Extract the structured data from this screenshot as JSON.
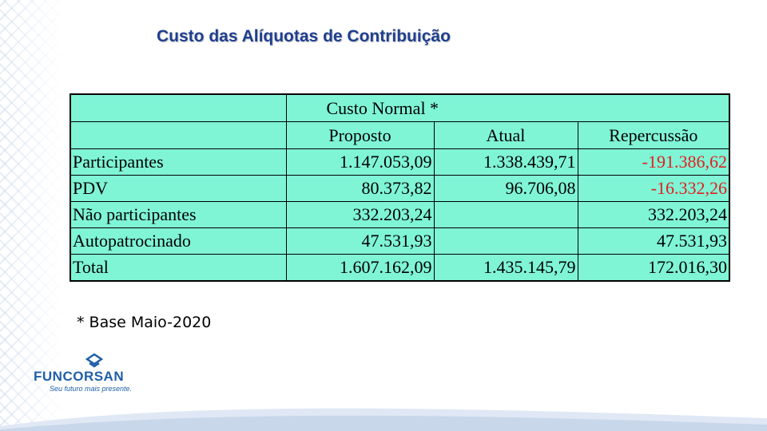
{
  "slide": {
    "title": "Custo das Alíquotas de Contribuição"
  },
  "table": {
    "group_header": "Custo Normal *",
    "columns": [
      "Proposto",
      "Atual",
      "Repercussão"
    ],
    "rows": [
      {
        "label": "Participantes",
        "proposto": "1.147.053,09",
        "atual": "1.338.439,71",
        "repercussao": "-191.386,62"
      },
      {
        "label": "PDV",
        "proposto": "80.373,82",
        "atual": "96.706,08",
        "repercussao": "-16.332,26"
      },
      {
        "label": "Não participantes",
        "proposto": "332.203,24",
        "atual": "",
        "repercussao": "332.203,24"
      },
      {
        "label": "Autopatrocinado",
        "proposto": "47.531,93",
        "atual": "",
        "repercussao": "47.531,93"
      },
      {
        "label": "Total",
        "proposto": "1.607.162,09",
        "atual": "1.435.145,79",
        "repercussao": "172.016,30"
      }
    ]
  },
  "footnote": "* Base Maio-2020",
  "logo": {
    "name": "FUNCORSAN",
    "tagline": "Seu futuro mais presente."
  },
  "colors": {
    "title": "#1f3f8f",
    "table_bg": "#7ff5d6",
    "negative": "#e02020",
    "brand": "#1f5fa8"
  }
}
